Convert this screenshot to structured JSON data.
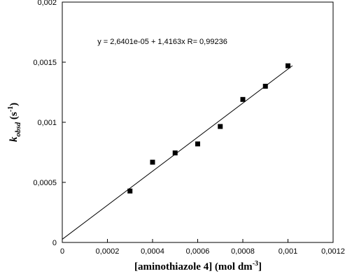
{
  "chart_data": {
    "type": "scatter",
    "annotation": "y = 2,6401e-05 + 1,4163x   R= 0,99236",
    "xlabel_parts": [
      "[aminothiazole 4] (mol dm",
      "-3",
      "]"
    ],
    "ylabel_parts": [
      "k",
      "obsd",
      " (s",
      "-1",
      ")"
    ],
    "x": [
      0.0003,
      0.0004,
      0.0005,
      0.0006,
      0.0007,
      0.0008,
      0.0009,
      0.001
    ],
    "series": [
      {
        "color": "#000000",
        "values": [
          0.000428,
          0.000668,
          0.000745,
          0.00082,
          0.000965,
          0.00119,
          0.0013,
          0.00147
        ]
      }
    ],
    "fit": {
      "intercept": 2.6401e-05,
      "slope": 1.4163,
      "x_range": [
        0,
        0.00102
      ],
      "color": "#000000"
    },
    "xlim": [
      0,
      0.0012
    ],
    "xticks": [
      0,
      {
        "value": 0.0002,
        "label": "0,0002"
      },
      {
        "value": 0.0004,
        "label": "0,0004"
      },
      {
        "value": 0.0006,
        "label": "0,0006"
      },
      {
        "value": 0.0008,
        "label": "0,0008"
      },
      {
        "value": 0.001,
        "label": "0,001"
      },
      {
        "value": 0.0012,
        "label": "0,0012"
      }
    ],
    "ylim": [
      0,
      0.002
    ],
    "yticks": [
      0,
      {
        "value": 0.0005,
        "label": "0,0005"
      },
      {
        "value": 0.001,
        "label": "0,001"
      },
      {
        "value": 0.0015,
        "label": "0,0015"
      },
      {
        "value": 0.002,
        "label": "0,002"
      }
    ],
    "grid": false
  }
}
